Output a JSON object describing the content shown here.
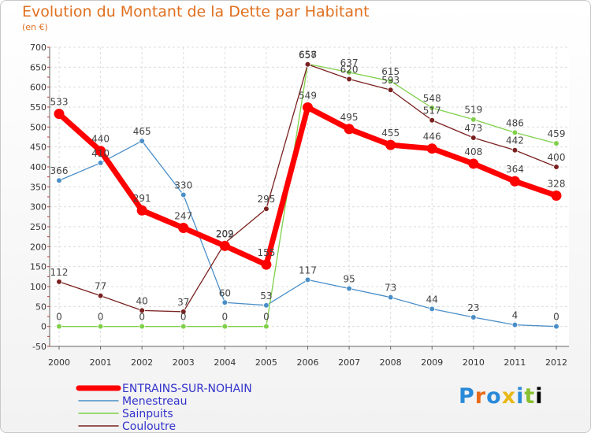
{
  "chart_data": {
    "type": "line",
    "title": "Evolution du Montant de la Dette par Habitant",
    "subtitle": "(en €)",
    "categories": [
      "2000",
      "2001",
      "2002",
      "2003",
      "2004",
      "2005",
      "2006",
      "2007",
      "2008",
      "2009",
      "2010",
      "2011",
      "2012"
    ],
    "ylim": [
      -50,
      700
    ],
    "yticks": [
      -50,
      0,
      50,
      100,
      150,
      200,
      250,
      300,
      350,
      400,
      450,
      500,
      550,
      600,
      650,
      700
    ],
    "grid": true,
    "legend_position": "bottom-left",
    "series": [
      {
        "name": "ENTRAINS-SUR-NOHAIN",
        "color": "#ff0000",
        "emphasis": true,
        "values": [
          533,
          440,
          291,
          247,
          202,
          155,
          549,
          495,
          455,
          446,
          408,
          364,
          328
        ]
      },
      {
        "name": "Menestreau",
        "color": "#4a8ec8",
        "emphasis": false,
        "values": [
          366,
          410,
          465,
          330,
          60,
          53,
          117,
          95,
          73,
          44,
          23,
          4,
          0
        ]
      },
      {
        "name": "Sainpuits",
        "color": "#7fd04a",
        "emphasis": false,
        "values": [
          0,
          0,
          0,
          0,
          0,
          0,
          658,
          637,
          615,
          548,
          519,
          486,
          459
        ]
      },
      {
        "name": "Couloutre",
        "color": "#7a2020",
        "emphasis": false,
        "values": [
          112,
          77,
          40,
          37,
          209,
          295,
          657,
          620,
          593,
          517,
          473,
          442,
          400
        ]
      }
    ]
  },
  "brand": {
    "logo_letters": [
      "P",
      "r",
      "o",
      "x",
      "i",
      "t",
      "i"
    ]
  }
}
